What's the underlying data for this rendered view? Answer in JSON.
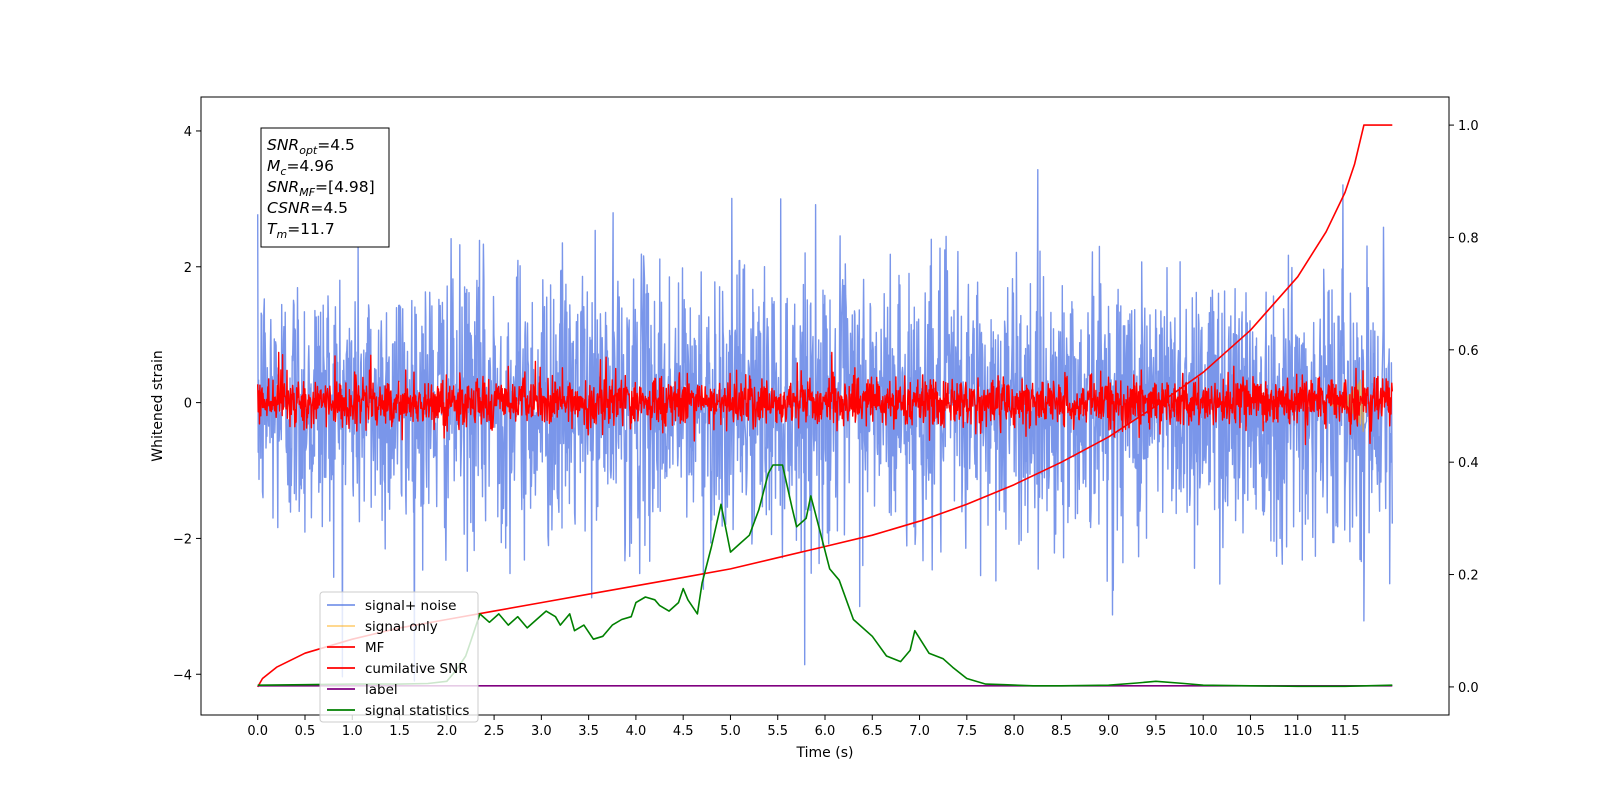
{
  "chart_data": {
    "type": "line",
    "xlabel": "Time (s)",
    "ylabel": "Whitened strain",
    "xlim": [
      -0.6,
      12.6
    ],
    "ylim": [
      -4.6,
      4.5
    ],
    "y2lim": [
      -0.05,
      1.05
    ],
    "x_ticks": [
      "0.0",
      "0.5",
      "1.0",
      "1.5",
      "2.0",
      "2.5",
      "3.0",
      "3.5",
      "4.0",
      "4.5",
      "5.0",
      "5.5",
      "6.0",
      "6.5",
      "7.0",
      "7.5",
      "8.0",
      "8.5",
      "9.0",
      "9.5",
      "10.0",
      "10.5",
      "11.0",
      "11.5"
    ],
    "y_ticks": [
      "4",
      "2",
      "0",
      "−2",
      "−4"
    ],
    "y2_ticks": [
      "1.0",
      "0.8",
      "0.6",
      "0.4",
      "0.2",
      "0.0"
    ],
    "grid": false,
    "legend_position": "lower-left",
    "stats_box": [
      {
        "sym": "SNR",
        "sub": "opt",
        "val": "=4.5"
      },
      {
        "sym": "M",
        "sub": "c",
        "val": "=4.96"
      },
      {
        "sym": "SNR",
        "sub": "MF",
        "val": "=[4.98]"
      },
      {
        "sym": "CSNR",
        "sub": "",
        "val": "=4.5"
      },
      {
        "sym": "T",
        "sub": "m",
        "val": "=11.7"
      }
    ],
    "series": [
      {
        "name": "signal+ noise",
        "color": "#4169e1",
        "axis": "left",
        "kind": "noise",
        "x_range": [
          0,
          12.0
        ],
        "amplitude_std": 1.0
      },
      {
        "name": "signal only",
        "color": "#ffa500",
        "axis": "left",
        "kind": "chirp",
        "x_range": [
          0,
          11.7
        ]
      },
      {
        "name": "MF",
        "color": "#ff0000",
        "axis": "left",
        "kind": "noise",
        "x_range": [
          0,
          12.0
        ],
        "amplitude_std": 0.18
      },
      {
        "name": "cumilative SNR",
        "color": "#ff0000",
        "axis": "right",
        "x": [
          0,
          0.05,
          0.2,
          0.5,
          1,
          1.5,
          2,
          2.5,
          3,
          3.5,
          4,
          4.5,
          5,
          5.5,
          6,
          6.5,
          7,
          7.5,
          8,
          8.5,
          9,
          9.5,
          10,
          10.5,
          11,
          11.3,
          11.5,
          11.6,
          11.7,
          12.0
        ],
        "y": [
          0.0,
          0.015,
          0.035,
          0.06,
          0.085,
          0.105,
          0.12,
          0.135,
          0.15,
          0.165,
          0.18,
          0.195,
          0.21,
          0.23,
          0.25,
          0.27,
          0.295,
          0.325,
          0.36,
          0.4,
          0.445,
          0.5,
          0.56,
          0.635,
          0.73,
          0.81,
          0.88,
          0.93,
          1.0,
          1.0
        ]
      },
      {
        "name": "label",
        "color": "#800080",
        "axis": "right",
        "x": [
          0,
          12.0
        ],
        "y": [
          0.002,
          0.002
        ]
      },
      {
        "name": "signal statistics",
        "color": "#008000",
        "axis": "right",
        "x": [
          0,
          0.5,
          1.0,
          1.5,
          1.8,
          2.0,
          2.1,
          2.2,
          2.25,
          2.35,
          2.45,
          2.55,
          2.65,
          2.75,
          2.85,
          2.95,
          3.05,
          3.15,
          3.2,
          3.3,
          3.35,
          3.45,
          3.55,
          3.65,
          3.75,
          3.85,
          3.95,
          4.0,
          4.1,
          4.2,
          4.25,
          4.35,
          4.45,
          4.5,
          4.55,
          4.65,
          4.7,
          4.8,
          4.9,
          5.0,
          5.1,
          5.2,
          5.3,
          5.4,
          5.45,
          5.55,
          5.65,
          5.7,
          5.8,
          5.85,
          5.95,
          6.05,
          6.15,
          6.3,
          6.5,
          6.65,
          6.8,
          6.9,
          6.95,
          7.1,
          7.25,
          7.35,
          7.5,
          7.7,
          7.9,
          8.2,
          8.5,
          9.0,
          9.3,
          9.5,
          9.8,
          10.0,
          10.5,
          11.0,
          11.5,
          12.0
        ],
        "y": [
          0.003,
          0.004,
          0.005,
          0.005,
          0.006,
          0.01,
          0.03,
          0.055,
          0.08,
          0.13,
          0.115,
          0.13,
          0.11,
          0.125,
          0.105,
          0.12,
          0.135,
          0.125,
          0.11,
          0.13,
          0.1,
          0.11,
          0.085,
          0.09,
          0.11,
          0.12,
          0.125,
          0.15,
          0.16,
          0.155,
          0.145,
          0.135,
          0.15,
          0.175,
          0.155,
          0.13,
          0.185,
          0.25,
          0.325,
          0.24,
          0.255,
          0.27,
          0.315,
          0.38,
          0.395,
          0.395,
          0.32,
          0.285,
          0.3,
          0.34,
          0.275,
          0.21,
          0.19,
          0.12,
          0.09,
          0.055,
          0.045,
          0.065,
          0.1,
          0.06,
          0.05,
          0.035,
          0.015,
          0.005,
          0.004,
          0.002,
          0.002,
          0.003,
          0.007,
          0.01,
          0.006,
          0.003,
          0.002,
          0.001,
          0.001,
          0.003
        ]
      }
    ]
  }
}
